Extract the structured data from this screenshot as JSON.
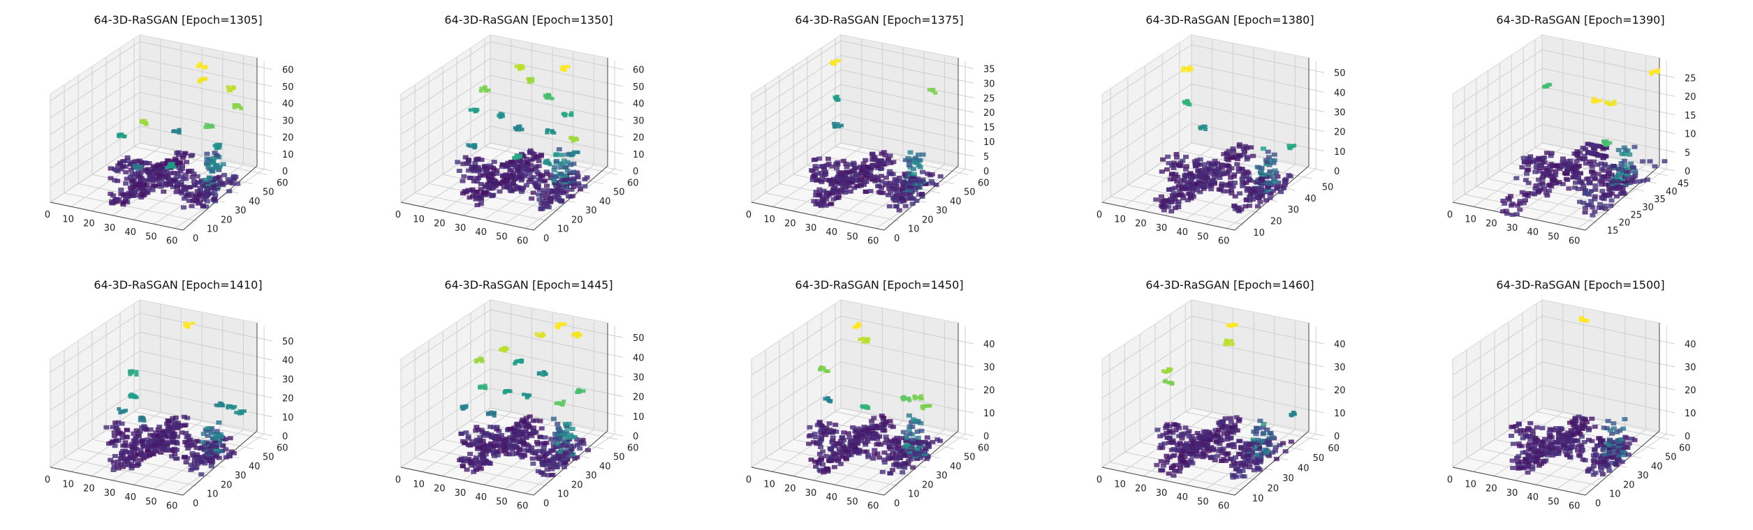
{
  "chart_data": [
    {
      "type": "scatter",
      "projection": "3d",
      "title": "64-3D-RaSGAN [Epoch=1305]",
      "x_ticks": [
        "0",
        "10",
        "20",
        "30",
        "40",
        "50",
        "60"
      ],
      "y_ticks": [
        "0",
        "10",
        "20",
        "30",
        "40",
        "50",
        "60"
      ],
      "z_ticks": [
        "0",
        "10",
        "20",
        "30",
        "40",
        "50",
        "60"
      ],
      "xlim": [
        0,
        64
      ],
      "ylim": [
        0,
        64
      ],
      "zlim": [
        0,
        64
      ],
      "colormap": "viridis",
      "clusters": [
        {
          "x": 18,
          "y": 40,
          "z": 30,
          "level": 0.85
        },
        {
          "x": 36,
          "y": 55,
          "z": 60,
          "level": 1.0
        },
        {
          "x": 40,
          "y": 50,
          "z": 55,
          "level": 0.98
        },
        {
          "x": 50,
          "y": 55,
          "z": 50,
          "level": 0.9
        },
        {
          "x": 58,
          "y": 48,
          "z": 45,
          "level": 0.82
        },
        {
          "x": 8,
          "y": 40,
          "z": 20,
          "level": 0.55
        },
        {
          "x": 30,
          "y": 45,
          "z": 25,
          "level": 0.45
        },
        {
          "x": 44,
          "y": 48,
          "z": 30,
          "level": 0.75
        },
        {
          "x": 54,
          "y": 40,
          "z": 25,
          "level": 0.5
        },
        {
          "x": 60,
          "y": 30,
          "z": 20,
          "level": 0.45
        },
        {
          "x": 38,
          "y": 30,
          "z": 15,
          "level": 0.55
        },
        {
          "x": 22,
          "y": 30,
          "z": 10,
          "level": 0.4
        }
      ]
    },
    {
      "type": "scatter",
      "projection": "3d",
      "title": "64-3D-RaSGAN [Epoch=1350]",
      "x_ticks": [
        "0",
        "10",
        "20",
        "30",
        "40",
        "50",
        "60"
      ],
      "y_ticks": [
        "0",
        "10",
        "20",
        "30",
        "40",
        "50",
        "60"
      ],
      "z_ticks": [
        "0",
        "10",
        "20",
        "30",
        "40",
        "50",
        "60"
      ],
      "xlim": [
        0,
        64
      ],
      "ylim": [
        0,
        64
      ],
      "zlim": [
        0,
        64
      ],
      "colormap": "viridis",
      "clusters": [
        {
          "x": 42,
          "y": 55,
          "z": 60,
          "level": 1.0
        },
        {
          "x": 20,
          "y": 55,
          "z": 55,
          "level": 0.9
        },
        {
          "x": 28,
          "y": 50,
          "z": 52,
          "level": 0.85
        },
        {
          "x": 10,
          "y": 45,
          "z": 45,
          "level": 0.8
        },
        {
          "x": 38,
          "y": 50,
          "z": 45,
          "level": 0.7
        },
        {
          "x": 50,
          "y": 45,
          "z": 40,
          "level": 0.6
        },
        {
          "x": 8,
          "y": 40,
          "z": 35,
          "level": 0.55
        },
        {
          "x": 22,
          "y": 40,
          "z": 35,
          "level": 0.5
        },
        {
          "x": 30,
          "y": 40,
          "z": 30,
          "level": 0.45
        },
        {
          "x": 44,
          "y": 42,
          "z": 30,
          "level": 0.5
        },
        {
          "x": 56,
          "y": 40,
          "z": 30,
          "level": 0.85
        },
        {
          "x": 60,
          "y": 35,
          "z": 25,
          "level": 0.45
        },
        {
          "x": 14,
          "y": 30,
          "z": 20,
          "level": 0.45
        },
        {
          "x": 36,
          "y": 30,
          "z": 20,
          "level": 0.6
        },
        {
          "x": 50,
          "y": 30,
          "z": 20,
          "level": 0.5
        }
      ]
    },
    {
      "type": "scatter",
      "projection": "3d",
      "title": "64-3D-RaSGAN [Epoch=1375]",
      "x_ticks": [
        "0",
        "10",
        "20",
        "30",
        "40",
        "50",
        "60"
      ],
      "y_ticks": [
        "0",
        "10",
        "20",
        "30",
        "40",
        "50",
        "60"
      ],
      "z_ticks": [
        "0",
        "5",
        "10",
        "15",
        "20",
        "25",
        "30",
        "35"
      ],
      "xlim": [
        0,
        64
      ],
      "ylim": [
        0,
        64
      ],
      "zlim": [
        0,
        37
      ],
      "colormap": "viridis",
      "clusters": [
        {
          "x": 10,
          "y": 45,
          "z": 35,
          "level": 1.0
        },
        {
          "x": 14,
          "y": 40,
          "z": 25,
          "level": 0.55
        },
        {
          "x": 50,
          "y": 55,
          "z": 28,
          "level": 0.8
        },
        {
          "x": 18,
          "y": 35,
          "z": 18,
          "level": 0.45
        }
      ]
    },
    {
      "type": "scatter",
      "projection": "3d",
      "title": "64-3D-RaSGAN [Epoch=1380]",
      "x_ticks": [
        "0",
        "10",
        "20",
        "30",
        "40",
        "50",
        "60"
      ],
      "y_ticks": [
        "10",
        "20",
        "30",
        "40",
        "50"
      ],
      "z_ticks": [
        "0",
        "10",
        "20",
        "30",
        "40",
        "50"
      ],
      "xlim": [
        0,
        64
      ],
      "ylim": [
        5,
        57
      ],
      "zlim": [
        0,
        55
      ],
      "colormap": "viridis",
      "clusters": [
        {
          "x": 12,
          "y": 40,
          "z": 50,
          "level": 1.0
        },
        {
          "x": 12,
          "y": 40,
          "z": 33,
          "level": 0.65
        },
        {
          "x": 20,
          "y": 40,
          "z": 22,
          "level": 0.5
        },
        {
          "x": 54,
          "y": 50,
          "z": 14,
          "level": 0.6
        }
      ]
    },
    {
      "type": "scatter",
      "projection": "3d",
      "title": "64-3D-RaSGAN [Epoch=1390]",
      "x_ticks": [
        "0",
        "10",
        "20",
        "30",
        "40",
        "50",
        "60"
      ],
      "y_ticks": [
        "15",
        "20",
        "25",
        "30",
        "35",
        "40",
        "45"
      ],
      "z_ticks": [
        "0",
        "5",
        "10",
        "15",
        "20",
        "25"
      ],
      "xlim": [
        0,
        64
      ],
      "ylim": [
        10,
        48
      ],
      "zlim": [
        0,
        29
      ],
      "colormap": "viridis",
      "clusters": [
        {
          "x": 58,
          "y": 45,
          "z": 27,
          "level": 1.0
        },
        {
          "x": 38,
          "y": 38,
          "z": 20,
          "level": 1.0
        },
        {
          "x": 42,
          "y": 40,
          "z": 19,
          "level": 0.98
        },
        {
          "x": 12,
          "y": 40,
          "z": 20,
          "level": 0.7
        },
        {
          "x": 40,
          "y": 40,
          "z": 8,
          "level": 0.7
        },
        {
          "x": 48,
          "y": 25,
          "z": 2,
          "level": 0.2
        }
      ]
    },
    {
      "type": "scatter",
      "projection": "3d",
      "title": "64-3D-RaSGAN [Epoch=1410]",
      "x_ticks": [
        "0",
        "10",
        "20",
        "30",
        "40",
        "50",
        "60"
      ],
      "y_ticks": [
        "0",
        "10",
        "20",
        "30",
        "40",
        "50",
        "60"
      ],
      "z_ticks": [
        "0",
        "10",
        "20",
        "30",
        "40",
        "50"
      ],
      "xlim": [
        0,
        64
      ],
      "ylim": [
        0,
        64
      ],
      "zlim": [
        0,
        57
      ],
      "colormap": "viridis",
      "clusters": [
        {
          "x": 30,
          "y": 55,
          "z": 55,
          "level": 1.0
        },
        {
          "x": 10,
          "y": 45,
          "z": 30,
          "level": 0.6
        },
        {
          "x": 12,
          "y": 42,
          "z": 20,
          "level": 0.55
        },
        {
          "x": 8,
          "y": 40,
          "z": 12,
          "level": 0.45
        },
        {
          "x": 18,
          "y": 40,
          "z": 10,
          "level": 0.4
        },
        {
          "x": 48,
          "y": 50,
          "z": 20,
          "level": 0.45
        },
        {
          "x": 54,
          "y": 50,
          "z": 20,
          "level": 0.5
        },
        {
          "x": 58,
          "y": 50,
          "z": 18,
          "level": 0.5
        }
      ]
    },
    {
      "type": "scatter",
      "projection": "3d",
      "title": "64-3D-RaSGAN [Epoch=1445]",
      "x_ticks": [
        "0",
        "10",
        "20",
        "30",
        "40",
        "50",
        "60"
      ],
      "y_ticks": [
        "0",
        "10",
        "20",
        "30",
        "40",
        "50",
        "60"
      ],
      "z_ticks": [
        "0",
        "10",
        "20",
        "30",
        "40",
        "50"
      ],
      "xlim": [
        0,
        64
      ],
      "ylim": [
        0,
        64
      ],
      "zlim": [
        0,
        55
      ],
      "colormap": "viridis",
      "clusters": [
        {
          "x": 40,
          "y": 55,
          "z": 55,
          "level": 1.0
        },
        {
          "x": 48,
          "y": 55,
          "z": 52,
          "level": 0.98
        },
        {
          "x": 30,
          "y": 55,
          "z": 48,
          "level": 0.95
        },
        {
          "x": 16,
          "y": 50,
          "z": 40,
          "level": 0.9
        },
        {
          "x": 8,
          "y": 45,
          "z": 35,
          "level": 0.85
        },
        {
          "x": 26,
          "y": 45,
          "z": 38,
          "level": 0.55
        },
        {
          "x": 38,
          "y": 45,
          "z": 35,
          "level": 0.5
        },
        {
          "x": 56,
          "y": 45,
          "z": 30,
          "level": 0.7
        },
        {
          "x": 12,
          "y": 40,
          "z": 25,
          "level": 0.65
        },
        {
          "x": 24,
          "y": 40,
          "z": 25,
          "level": 0.55
        },
        {
          "x": 34,
          "y": 40,
          "z": 25,
          "level": 0.5
        },
        {
          "x": 50,
          "y": 40,
          "z": 25,
          "level": 0.75
        },
        {
          "x": 6,
          "y": 35,
          "z": 15,
          "level": 0.45
        },
        {
          "x": 20,
          "y": 35,
          "z": 15,
          "level": 0.4
        }
      ]
    },
    {
      "type": "scatter",
      "projection": "3d",
      "title": "64-3D-RaSGAN [Epoch=1450]",
      "x_ticks": [
        "0",
        "10",
        "20",
        "30",
        "40",
        "50",
        "60"
      ],
      "y_ticks": [
        "0",
        "10",
        "20",
        "30",
        "40",
        "50",
        "60"
      ],
      "z_ticks": [
        "0",
        "10",
        "20",
        "30",
        "40"
      ],
      "xlim": [
        0,
        64
      ],
      "ylim": [
        0,
        64
      ],
      "zlim": [
        0,
        47
      ],
      "colormap": "viridis",
      "clusters": [
        {
          "x": 18,
          "y": 50,
          "z": 45,
          "level": 1.0
        },
        {
          "x": 22,
          "y": 48,
          "z": 40,
          "level": 0.9
        },
        {
          "x": 8,
          "y": 40,
          "z": 28,
          "level": 0.8
        },
        {
          "x": 10,
          "y": 40,
          "z": 15,
          "level": 0.45
        },
        {
          "x": 28,
          "y": 40,
          "z": 15,
          "level": 0.65
        },
        {
          "x": 44,
          "y": 45,
          "z": 20,
          "level": 0.75
        },
        {
          "x": 50,
          "y": 45,
          "z": 22,
          "level": 0.8
        },
        {
          "x": 54,
          "y": 45,
          "z": 18,
          "level": 0.8
        }
      ]
    },
    {
      "type": "scatter",
      "projection": "3d",
      "title": "64-3D-RaSGAN [Epoch=1460]",
      "x_ticks": [
        "0",
        "10",
        "20",
        "30",
        "40",
        "50",
        "60"
      ],
      "y_ticks": [
        "10",
        "20",
        "30",
        "40",
        "50",
        "60"
      ],
      "z_ticks": [
        "0",
        "10",
        "20",
        "30",
        "40"
      ],
      "xlim": [
        0,
        64
      ],
      "ylim": [
        5,
        64
      ],
      "zlim": [
        0,
        47
      ],
      "colormap": "viridis",
      "clusters": [
        {
          "x": 26,
          "y": 55,
          "z": 45,
          "level": 1.0
        },
        {
          "x": 28,
          "y": 50,
          "z": 40,
          "level": 0.9
        },
        {
          "x": 6,
          "y": 40,
          "z": 28,
          "level": 0.85
        },
        {
          "x": 8,
          "y": 38,
          "z": 24,
          "level": 0.8
        },
        {
          "x": 60,
          "y": 50,
          "z": 15,
          "level": 0.45
        }
      ]
    },
    {
      "type": "scatter",
      "projection": "3d",
      "title": "64-3D-RaSGAN [Epoch=1500]",
      "x_ticks": [
        "0",
        "10",
        "20",
        "30",
        "40",
        "50",
        "60"
      ],
      "y_ticks": [
        "0",
        "10",
        "20",
        "30",
        "40",
        "50",
        "60"
      ],
      "z_ticks": [
        "0",
        "10",
        "20",
        "30",
        "40"
      ],
      "xlim": [
        0,
        64
      ],
      "ylim": [
        0,
        64
      ],
      "zlim": [
        0,
        47
      ],
      "colormap": "viridis",
      "clusters": [
        {
          "x": 26,
          "y": 55,
          "z": 47,
          "level": 1.0
        }
      ]
    }
  ]
}
